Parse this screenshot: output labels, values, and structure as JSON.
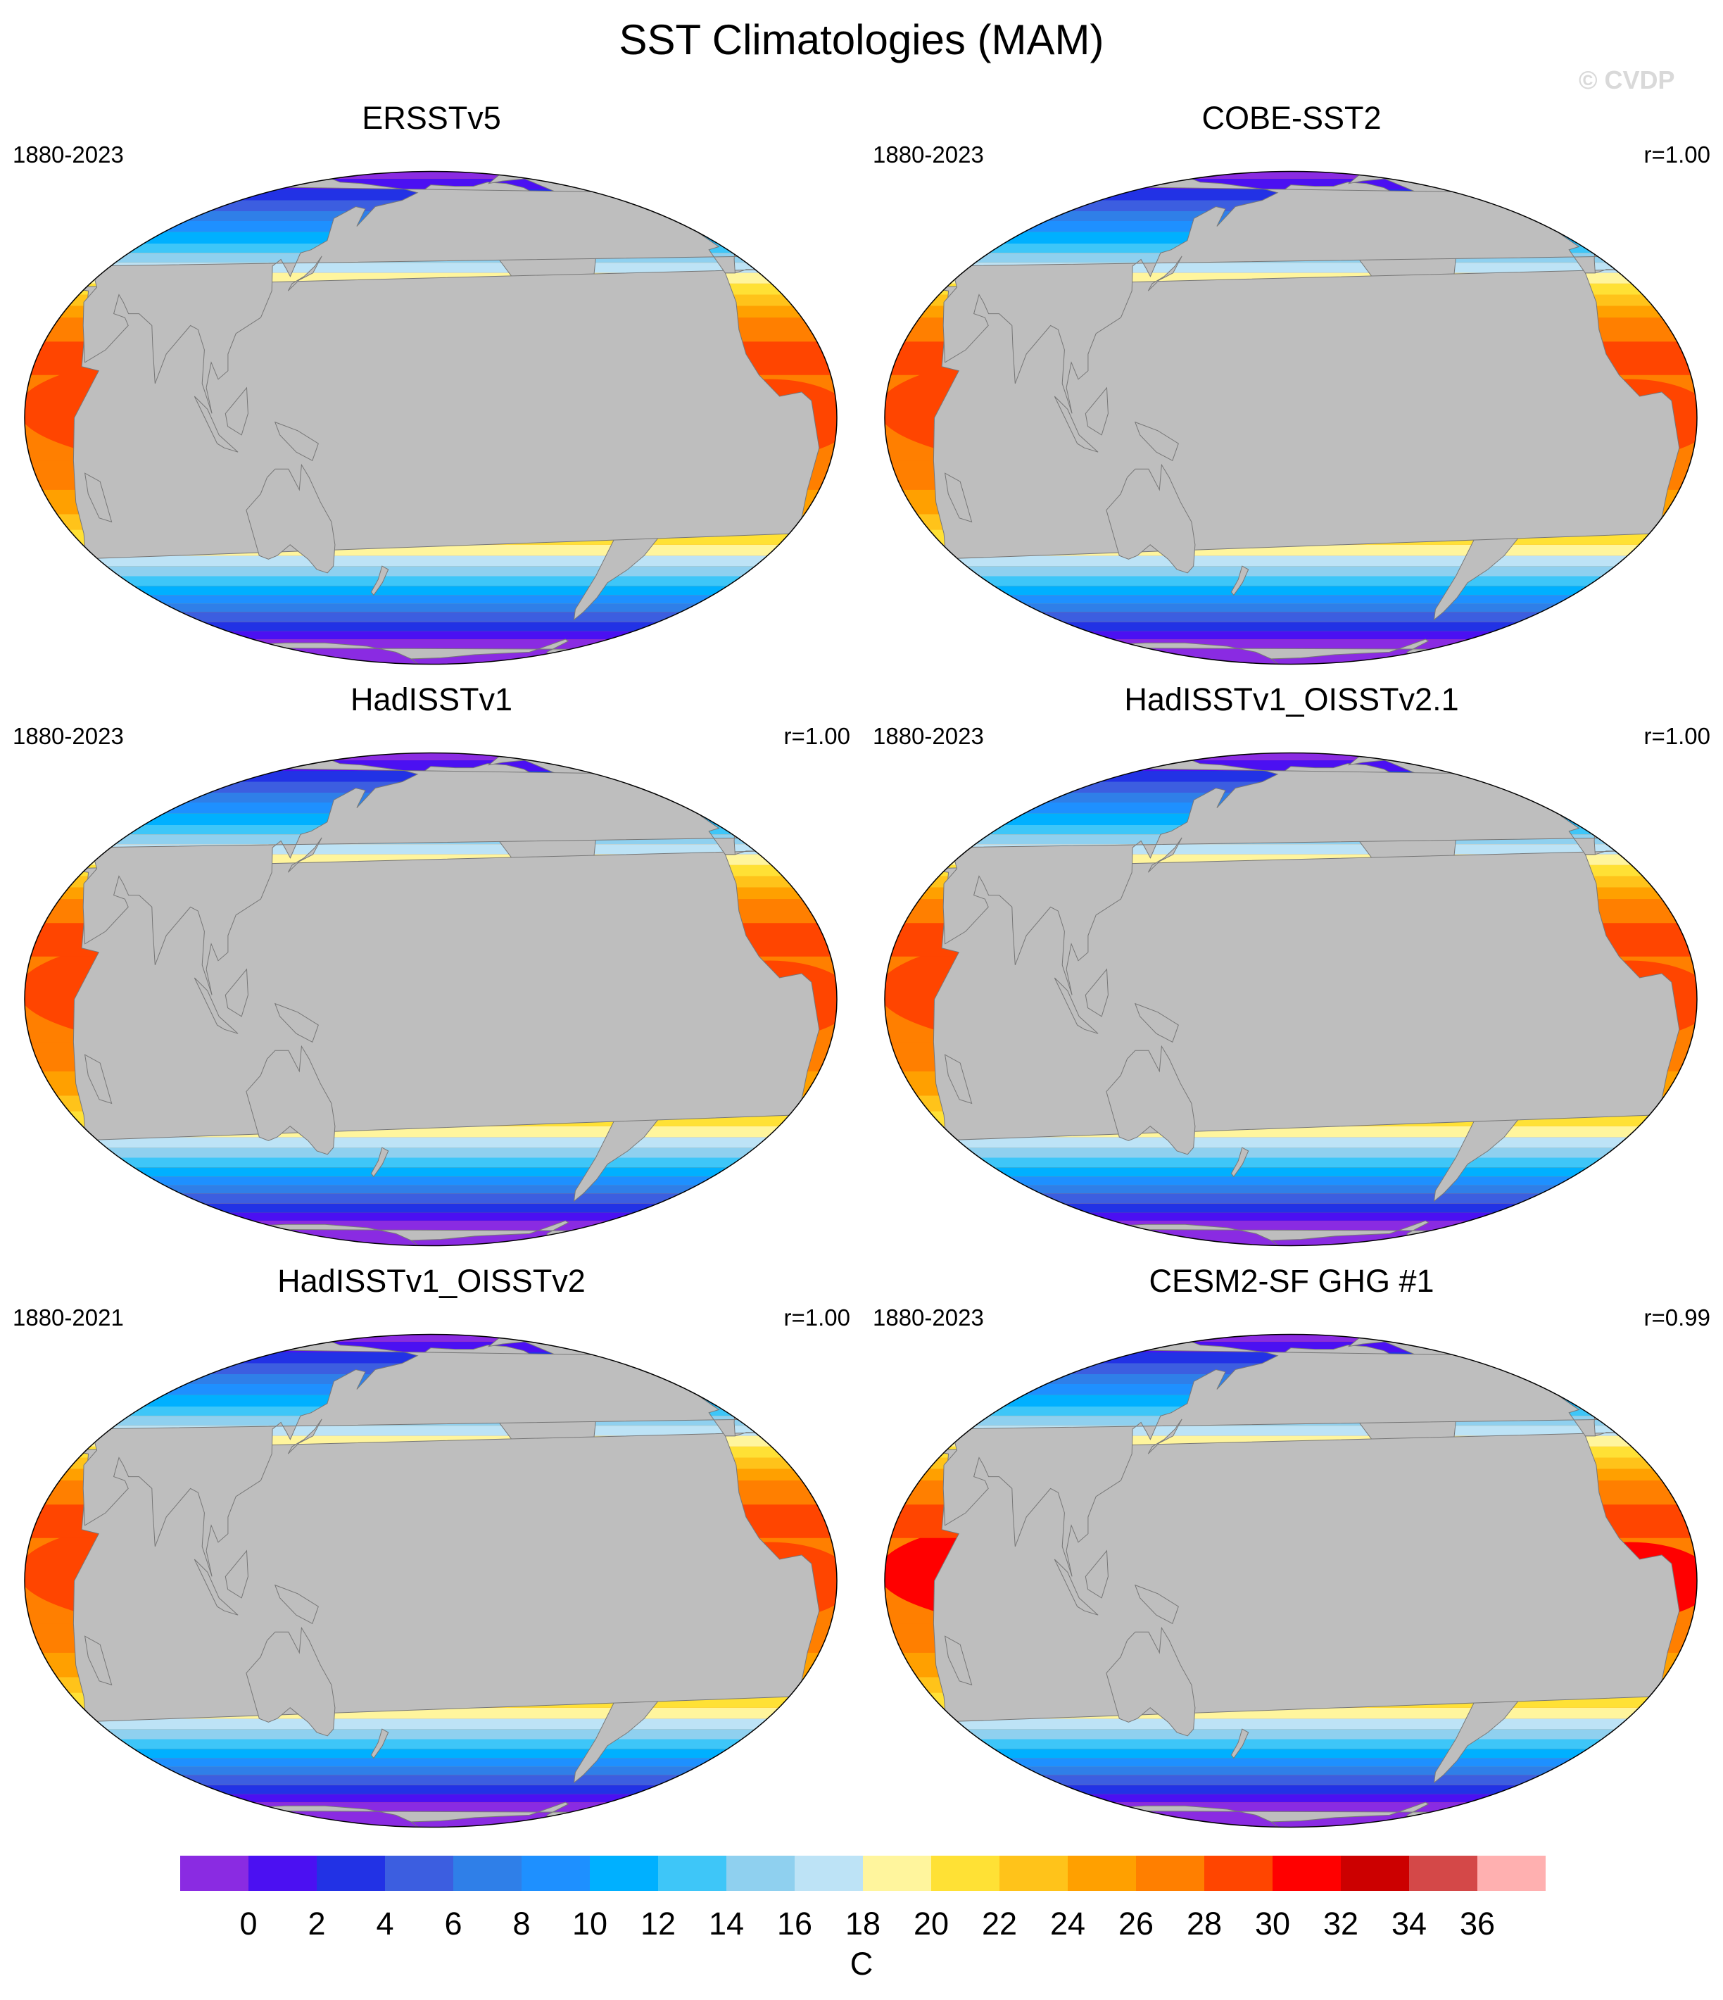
{
  "title": "SST Climatologies (MAM)",
  "watermark": "© CVDP",
  "colorbar": {
    "unit": "C",
    "colors": [
      "#8a2be2",
      "#4b10f2",
      "#2232e5",
      "#3c5ee0",
      "#2f7fe8",
      "#1e90ff",
      "#00b0ff",
      "#3ec6f8",
      "#8fd0ef",
      "#bde3f6",
      "#fff59d",
      "#ffe135",
      "#ffc31a",
      "#ffa000",
      "#ff7f00",
      "#ff4500",
      "#ff0000",
      "#cc0000",
      "#d44848",
      "#ffb0b0"
    ],
    "tick_labels": [
      "0",
      "2",
      "4",
      "6",
      "8",
      "10",
      "12",
      "14",
      "16",
      "18",
      "20",
      "22",
      "24",
      "26",
      "28",
      "30",
      "32",
      "34",
      "36"
    ]
  },
  "panels": [
    {
      "title": "ERSSTv5",
      "years": "1880-2023",
      "corr": ""
    },
    {
      "title": "COBE-SST2",
      "years": "1880-2023",
      "corr": "r=1.00"
    },
    {
      "title": "HadISSTv1",
      "years": "1880-2023",
      "corr": "r=1.00"
    },
    {
      "title": "HadISSTv1_OISSTv2.1",
      "years": "1880-2023",
      "corr": "r=1.00"
    },
    {
      "title": "HadISSTv1_OISSTv2",
      "years": "1880-2021",
      "corr": "r=1.00"
    },
    {
      "title": "CESM2-SF GHG #1",
      "years": "1880-2023",
      "corr": "r=0.99"
    }
  ]
}
